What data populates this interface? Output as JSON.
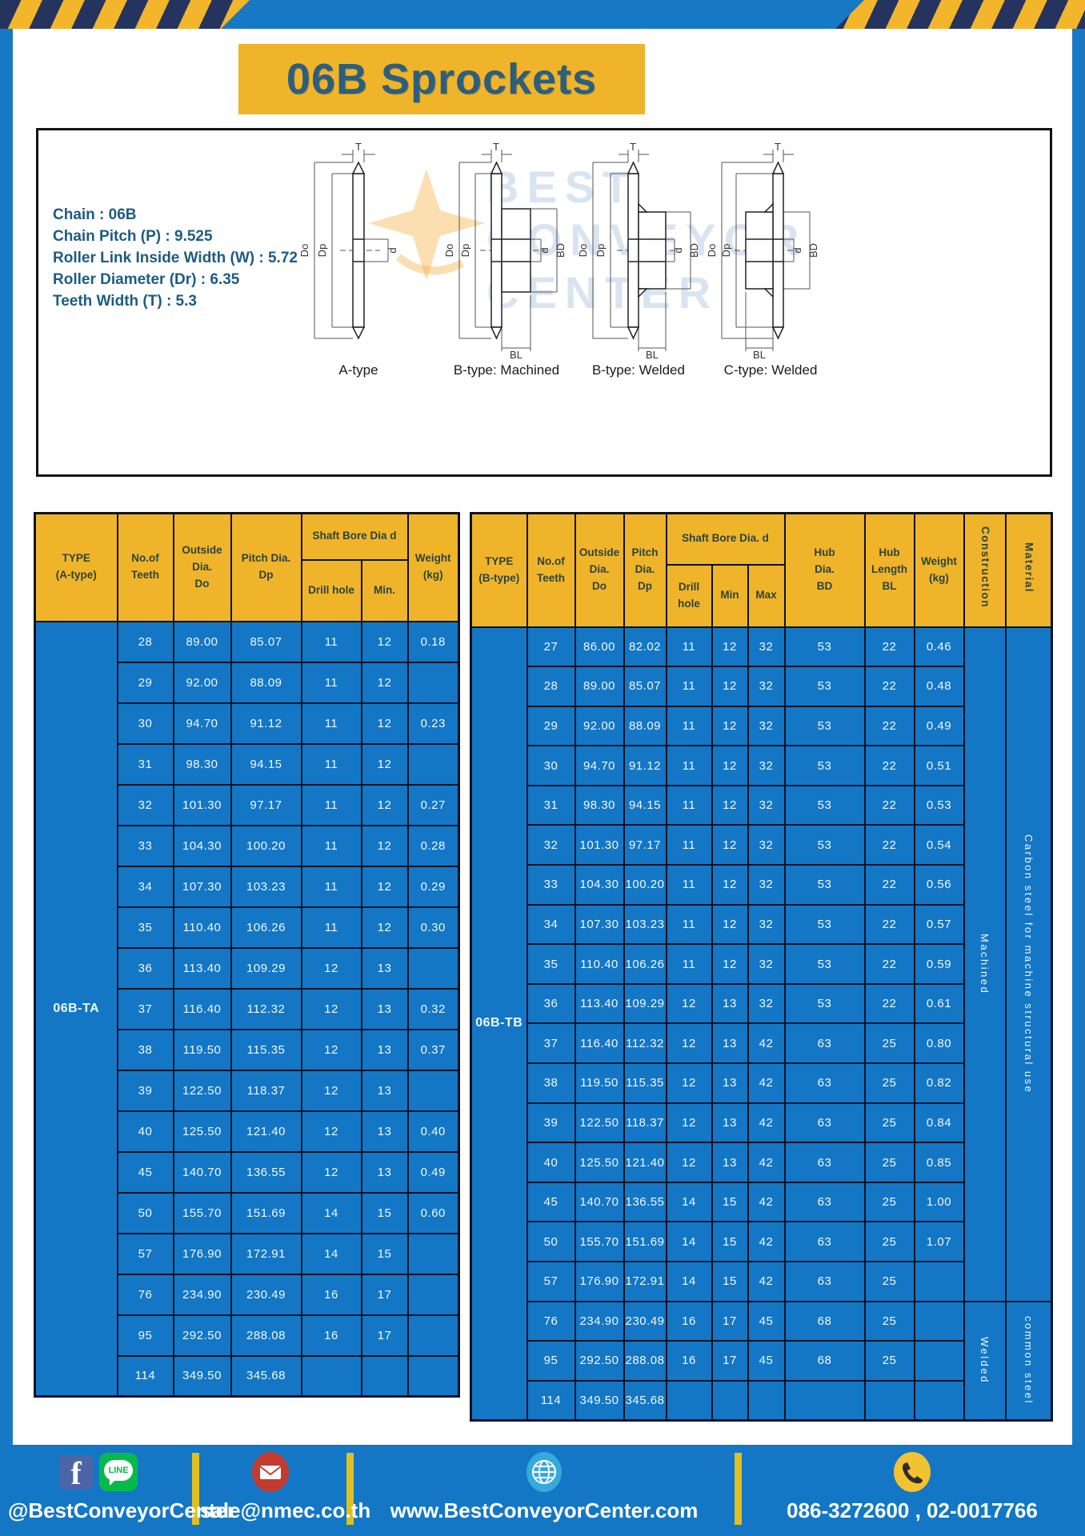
{
  "page": {
    "title": "06B Sprockets",
    "spec_lines": [
      "Chain  : 06B",
      "Chain Pitch (P)  :  9.525",
      "Roller Link Inside Width (W)  :  5.72",
      "Roller Diameter (Dr)  :  6.35",
      "Teeth Width (T)  :  5.3"
    ]
  },
  "diagram": {
    "watermark_lines": [
      "BEST",
      "CONVEYOR",
      "CENTER"
    ],
    "drawings": [
      {
        "caption": "A-type",
        "dims": {
          "t": "T",
          "outside": "Do",
          "pitch": "Dp",
          "bore": "d"
        }
      },
      {
        "caption": "B-type: Machined",
        "dims": {
          "t": "T",
          "outside": "Do",
          "pitch": "Dp",
          "bore": "d",
          "hub_dia": "BD",
          "hub_len": "BL"
        }
      },
      {
        "caption": "B-type: Welded",
        "dims": {
          "t": "T",
          "outside": "Do",
          "pitch": "Dp",
          "bore": "d",
          "hub_dia": "BD",
          "hub_len": "BL"
        }
      },
      {
        "caption": "C-type: Welded",
        "dims": {
          "t": "T",
          "outside": "Do",
          "pitch": "Dp",
          "bore": "d",
          "hub_dia": "BD",
          "hub_len": "BL"
        }
      }
    ]
  },
  "table_a": {
    "type_label": "06B-TA",
    "headers": {
      "type": "TYPE\n(A-type)",
      "teeth": "No.of\nTeeth",
      "outside": "Outside\nDia.\nDo",
      "pitch": "Pitch Dia.\nDp",
      "shaft_bore": "Shaft Bore Dia d",
      "drill": "Drill hole",
      "min": "Min.",
      "weight": "Weight\n(kg)"
    },
    "rows": [
      [
        "28",
        "89.00",
        "85.07",
        "11",
        "12",
        "0.18"
      ],
      [
        "29",
        "92.00",
        "88.09",
        "11",
        "12",
        ""
      ],
      [
        "30",
        "94.70",
        "91.12",
        "11",
        "12",
        "0.23"
      ],
      [
        "31",
        "98.30",
        "94.15",
        "11",
        "12",
        ""
      ],
      [
        "32",
        "101.30",
        "97.17",
        "11",
        "12",
        "0.27"
      ],
      [
        "33",
        "104.30",
        "100.20",
        "11",
        "12",
        "0.28"
      ],
      [
        "34",
        "107.30",
        "103.23",
        "11",
        "12",
        "0.29"
      ],
      [
        "35",
        "110.40",
        "106.26",
        "11",
        "12",
        "0.30"
      ],
      [
        "36",
        "113.40",
        "109.29",
        "12",
        "13",
        ""
      ],
      [
        "37",
        "116.40",
        "112.32",
        "12",
        "13",
        "0.32"
      ],
      [
        "38",
        "119.50",
        "115.35",
        "12",
        "13",
        "0.37"
      ],
      [
        "39",
        "122.50",
        "118.37",
        "12",
        "13",
        ""
      ],
      [
        "40",
        "125.50",
        "121.40",
        "12",
        "13",
        "0.40"
      ],
      [
        "45",
        "140.70",
        "136.55",
        "12",
        "13",
        "0.49"
      ],
      [
        "50",
        "155.70",
        "151.69",
        "14",
        "15",
        "0.60"
      ],
      [
        "57",
        "176.90",
        "172.91",
        "14",
        "15",
        ""
      ],
      [
        "76",
        "234.90",
        "230.49",
        "16",
        "17",
        ""
      ],
      [
        "95",
        "292.50",
        "288.08",
        "16",
        "17",
        ""
      ],
      [
        "114",
        "349.50",
        "345.68",
        "",
        "",
        ""
      ]
    ]
  },
  "table_b": {
    "type_label": "06B-TB",
    "headers": {
      "type": "TYPE\n(B-type)",
      "teeth": "No.of\nTeeth",
      "outside": "Outside\nDia.\nDo",
      "pitch": "Pitch\nDia.\nDp",
      "shaft_bore": "Shaft Bore Dia. d",
      "drill": "Drill hole",
      "min": "Min",
      "max": "Max",
      "hub_dia": "Hub\nDia.\nBD",
      "hub_len": "Hub\nLength\nBL",
      "weight": "Weight\n(kg)",
      "construction": "Construction",
      "material": "Material"
    },
    "rows": [
      [
        "27",
        "86.00",
        "82.02",
        "11",
        "12",
        "32",
        "53",
        "22",
        "0.46"
      ],
      [
        "28",
        "89.00",
        "85.07",
        "11",
        "12",
        "32",
        "53",
        "22",
        "0.48"
      ],
      [
        "29",
        "92.00",
        "88.09",
        "11",
        "12",
        "32",
        "53",
        "22",
        "0.49"
      ],
      [
        "30",
        "94.70",
        "91.12",
        "11",
        "12",
        "32",
        "53",
        "22",
        "0.51"
      ],
      [
        "31",
        "98.30",
        "94.15",
        "11",
        "12",
        "32",
        "53",
        "22",
        "0.53"
      ],
      [
        "32",
        "101.30",
        "97.17",
        "11",
        "12",
        "32",
        "53",
        "22",
        "0.54"
      ],
      [
        "33",
        "104.30",
        "100.20",
        "11",
        "12",
        "32",
        "53",
        "22",
        "0.56"
      ],
      [
        "34",
        "107.30",
        "103.23",
        "11",
        "12",
        "32",
        "53",
        "22",
        "0.57"
      ],
      [
        "35",
        "110.40",
        "106.26",
        "11",
        "12",
        "32",
        "53",
        "22",
        "0.59"
      ],
      [
        "36",
        "113.40",
        "109.29",
        "12",
        "13",
        "32",
        "53",
        "22",
        "0.61"
      ],
      [
        "37",
        "116.40",
        "112.32",
        "12",
        "13",
        "42",
        "63",
        "25",
        "0.80"
      ],
      [
        "38",
        "119.50",
        "115.35",
        "12",
        "13",
        "42",
        "63",
        "25",
        "0.82"
      ],
      [
        "39",
        "122.50",
        "118.37",
        "12",
        "13",
        "42",
        "63",
        "25",
        "0.84"
      ],
      [
        "40",
        "125.50",
        "121.40",
        "12",
        "13",
        "42",
        "63",
        "25",
        "0.85"
      ],
      [
        "45",
        "140.70",
        "136.55",
        "14",
        "15",
        "42",
        "63",
        "25",
        "1.00"
      ],
      [
        "50",
        "155.70",
        "151.69",
        "14",
        "15",
        "42",
        "63",
        "25",
        "1.07"
      ],
      [
        "57",
        "176.90",
        "172.91",
        "14",
        "15",
        "42",
        "63",
        "25",
        ""
      ],
      [
        "76",
        "234.90",
        "230.49",
        "16",
        "17",
        "45",
        "68",
        "25",
        ""
      ],
      [
        "95",
        "292.50",
        "288.08",
        "16",
        "17",
        "45",
        "68",
        "25",
        ""
      ],
      [
        "114",
        "349.50",
        "345.68",
        "",
        "",
        "",
        "",
        "",
        ""
      ]
    ],
    "sections": [
      {
        "construction": "Machined",
        "material": "Carbon steel for machine structural use",
        "rows": 17
      },
      {
        "construction": "Welded",
        "material": "common steel",
        "rows": 3
      }
    ]
  },
  "footer": {
    "facebook_f": "f",
    "line_label": "LINE",
    "social_handle": "@BestConveyorCenter",
    "email": "sale@nmec.co.th",
    "website": "www.BestConveyorCenter.com",
    "phones": "086-3272600 , 02-0017766"
  },
  "colors": {
    "frame_blue": "#1779c4",
    "cell_blue": "#1377c5",
    "header_yellow": "#f0b42a",
    "stripe_navy": "#25345f",
    "stripe_yellow": "#f2b52b",
    "separator_yellow": "#e0c020",
    "title_text": "#2a5f80",
    "border_dark": "#0c1222"
  }
}
